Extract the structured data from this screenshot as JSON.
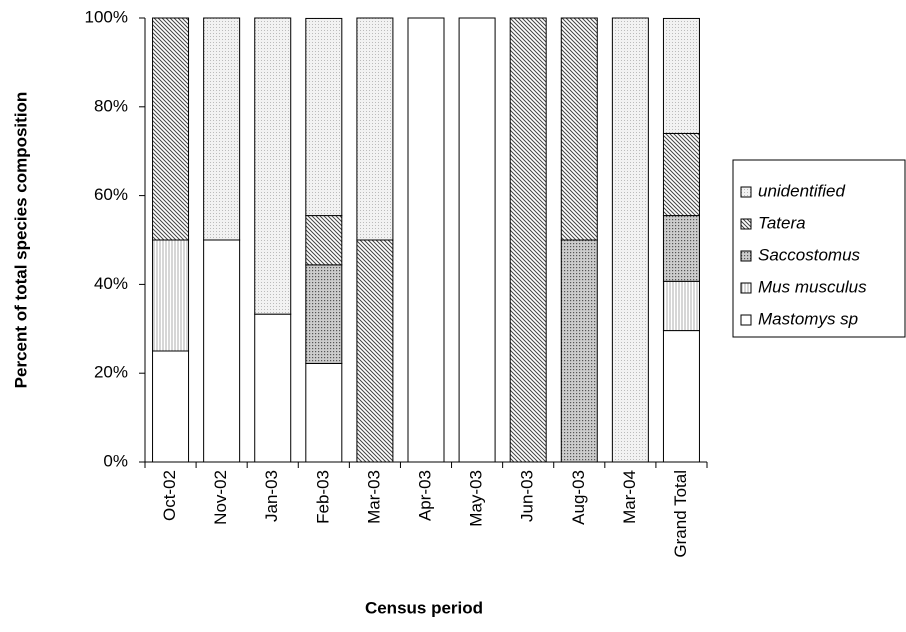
{
  "chart_data": {
    "type": "stacked_bar",
    "y_label": "Percent of total species composition",
    "x_label": "Census period",
    "categories": [
      "Oct-02",
      "Nov-02",
      "Jan-03",
      "Feb-03",
      "Mar-03",
      "Apr-03",
      "May-03",
      "Jun-03",
      "Aug-03",
      "Mar-04",
      "Grand Total"
    ],
    "series": [
      {
        "name": "Mastomys sp",
        "color": "#000000",
        "values": [
          25,
          50,
          33.3,
          22.2,
          0,
          100,
          100,
          0,
          0,
          0,
          29.6
        ]
      },
      {
        "name": "Mus musculus",
        "color": "#000000",
        "values": [
          25,
          0,
          0,
          0,
          0,
          0,
          0,
          0,
          0,
          0,
          11.1
        ]
      },
      {
        "name": "Saccostomus",
        "color": "#000000",
        "values": [
          0,
          0,
          0,
          22.2,
          0,
          0,
          0,
          0,
          50,
          0,
          14.8
        ]
      },
      {
        "name": "Tatera",
        "color": "#000000",
        "values": [
          50,
          0,
          0,
          11.1,
          50,
          0,
          0,
          100,
          50,
          0,
          18.5
        ]
      },
      {
        "name": "unidentified",
        "color": "#000000",
        "values": [
          0,
          50,
          66.7,
          44.4,
          50,
          0,
          0,
          0,
          0,
          100,
          25.9
        ]
      }
    ],
    "ylim": [
      0,
      100
    ],
    "yticks": [
      {
        "value": 0,
        "label": "0%"
      },
      {
        "value": 20,
        "label": "20%"
      },
      {
        "value": 40,
        "label": "40%"
      },
      {
        "value": 60,
        "label": "60%"
      },
      {
        "value": 80,
        "label": "80%"
      },
      {
        "value": 100,
        "label": "100%"
      }
    ],
    "legend": "right"
  }
}
